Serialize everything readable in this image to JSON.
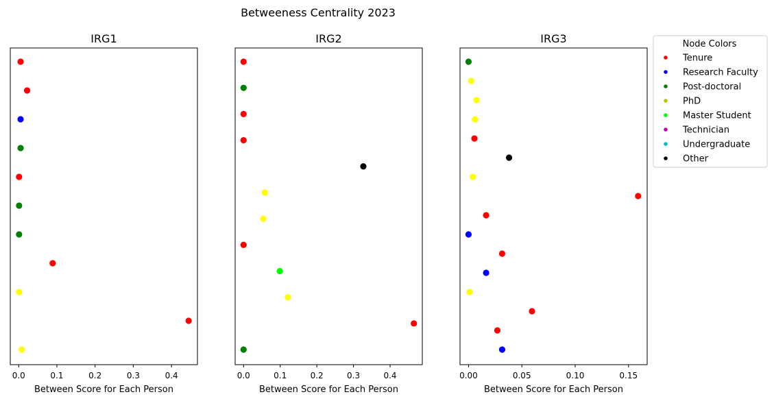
{
  "figure": {
    "title": "Betweeness Centrality 2023"
  },
  "legend": {
    "title": "Node Colors",
    "placement": "outside-right-top",
    "entries": [
      {
        "label": "Tenure",
        "color": "#ff0000"
      },
      {
        "label": "Research Faculty",
        "color": "#0000ff"
      },
      {
        "label": "Post-doctoral",
        "color": "#008000"
      },
      {
        "label": "PhD",
        "color": "#bfbf00"
      },
      {
        "label": "Master Student",
        "color": "#00ff00"
      },
      {
        "label": "Technician",
        "color": "#bf00bf"
      },
      {
        "label": "Undergraduate",
        "color": "#00bfbf"
      },
      {
        "label": "Other",
        "color": "#000000"
      }
    ]
  },
  "chart_data": [
    {
      "type": "scatter",
      "title": "IRG1",
      "xlabel": "Between Score for Each Person",
      "ylabel": "",
      "xlim": [
        -0.022,
        0.468
      ],
      "xticks": [
        0.0,
        0.1,
        0.2,
        0.3,
        0.4
      ],
      "xtick_labels": [
        "0.0",
        "0.1",
        "0.2",
        "0.3",
        "0.4"
      ],
      "show_yticks": false,
      "grid": false,
      "points": [
        {
          "x": 0.005,
          "color": "#ff0000"
        },
        {
          "x": 0.022,
          "color": "#ff0000"
        },
        {
          "x": 0.005,
          "color": "#0000ff"
        },
        {
          "x": 0.005,
          "color": "#008000"
        },
        {
          "x": 0.001,
          "color": "#ff0000"
        },
        {
          "x": 0.001,
          "color": "#008000"
        },
        {
          "x": 0.001,
          "color": "#008000"
        },
        {
          "x": 0.089,
          "color": "#ff0000"
        },
        {
          "x": 0.001,
          "color": "#ffff00"
        },
        {
          "x": 0.445,
          "color": "#ff0000"
        },
        {
          "x": 0.008,
          "color": "#ffff00"
        }
      ]
    },
    {
      "type": "scatter",
      "title": "IRG2",
      "xlabel": "Between Score for Each Person",
      "ylabel": "",
      "xlim": [
        -0.023,
        0.488
      ],
      "xticks": [
        0.0,
        0.1,
        0.2,
        0.3,
        0.4
      ],
      "xtick_labels": [
        "0.0",
        "0.1",
        "0.2",
        "0.3",
        "0.4"
      ],
      "show_yticks": false,
      "grid": false,
      "points": [
        {
          "x": 0.0,
          "color": "#ff0000"
        },
        {
          "x": 0.0,
          "color": "#008000"
        },
        {
          "x": 0.0,
          "color": "#ff0000"
        },
        {
          "x": 0.0,
          "color": "#ff0000"
        },
        {
          "x": 0.327,
          "color": "#000000"
        },
        {
          "x": 0.058,
          "color": "#ffff00"
        },
        {
          "x": 0.054,
          "color": "#ffff00"
        },
        {
          "x": 0.0,
          "color": "#ff0000"
        },
        {
          "x": 0.099,
          "color": "#00ff00"
        },
        {
          "x": 0.121,
          "color": "#ffff00"
        },
        {
          "x": 0.465,
          "color": "#ff0000"
        },
        {
          "x": 0.0,
          "color": "#008000"
        }
      ]
    },
    {
      "type": "scatter",
      "title": "IRG3",
      "xlabel": "Between Score for Each Person",
      "ylabel": "",
      "xlim": [
        -0.008,
        0.1675
      ],
      "xticks": [
        0.0,
        0.05,
        0.1,
        0.15
      ],
      "xtick_labels": [
        "0.00",
        "0.05",
        "0.10",
        "0.15"
      ],
      "show_yticks": false,
      "grid": false,
      "points": [
        {
          "x": 0.0,
          "color": "#008000"
        },
        {
          "x": 0.0025,
          "color": "#ffff00"
        },
        {
          "x": 0.0075,
          "color": "#ffff00"
        },
        {
          "x": 0.006,
          "color": "#ffff00"
        },
        {
          "x": 0.0055,
          "color": "#ff0000"
        },
        {
          "x": 0.038,
          "color": "#000000"
        },
        {
          "x": 0.004,
          "color": "#ffff00"
        },
        {
          "x": 0.159,
          "color": "#ff0000"
        },
        {
          "x": 0.0165,
          "color": "#ff0000"
        },
        {
          "x": 0.0,
          "color": "#0000ff"
        },
        {
          "x": 0.0315,
          "color": "#ff0000"
        },
        {
          "x": 0.0165,
          "color": "#0000ff"
        },
        {
          "x": 0.001,
          "color": "#ffff00"
        },
        {
          "x": 0.0595,
          "color": "#ff0000"
        },
        {
          "x": 0.027,
          "color": "#ff0000"
        },
        {
          "x": 0.0315,
          "color": "#0000ff"
        }
      ]
    }
  ]
}
